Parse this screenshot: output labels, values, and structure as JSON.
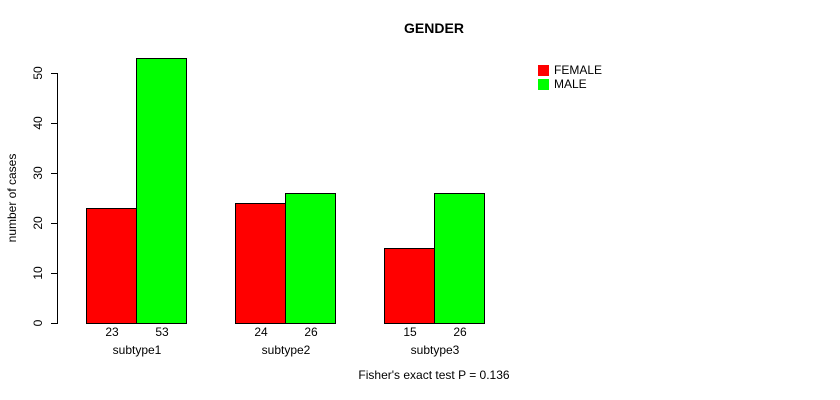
{
  "title": "GENDER",
  "annotation": "Fisher's exact test P = 0.136",
  "ylabel": "number of cases",
  "legend": {
    "items": [
      {
        "label": "FEMALE",
        "color": "#ff0000"
      },
      {
        "label": "MALE",
        "color": "#00ff00"
      }
    ]
  },
  "colors": {
    "female": "#ff0000",
    "male": "#00ff00",
    "axis": "#000000",
    "background": "#ffffff"
  },
  "chart_data": {
    "type": "bar",
    "title": "GENDER",
    "xlabel": "",
    "ylabel": "number of cases",
    "categories": [
      "subtype1",
      "subtype2",
      "subtype3"
    ],
    "series": [
      {
        "name": "FEMALE",
        "color": "#ff0000",
        "values": [
          23,
          24,
          15
        ]
      },
      {
        "name": "MALE",
        "color": "#00ff00",
        "values": [
          53,
          26,
          26
        ]
      }
    ],
    "bar_value_labels": [
      [
        "23",
        "53"
      ],
      [
        "24",
        "26"
      ],
      [
        "15",
        "26"
      ]
    ],
    "ylim": [
      0,
      50
    ],
    "yticks": [
      0,
      10,
      20,
      30,
      40,
      50
    ],
    "grid": false,
    "legend_position": "top-right",
    "annotation": "Fisher's exact test P = 0.136"
  }
}
